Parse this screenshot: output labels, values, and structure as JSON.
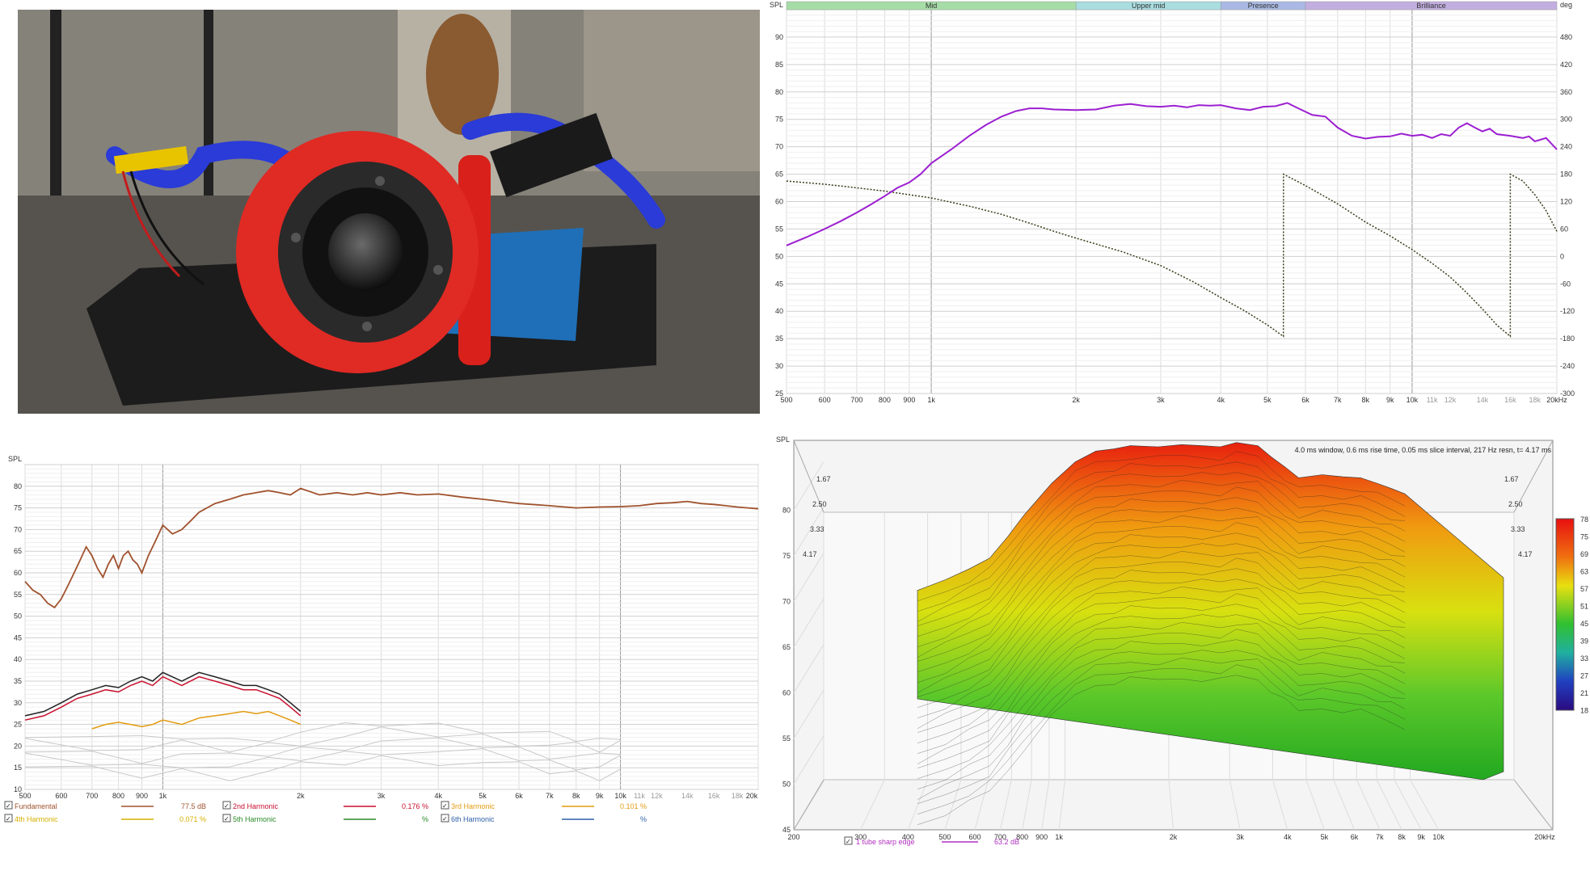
{
  "photo": {
    "subject": "red-tweeter-on-stand-photo"
  },
  "chart_data": [
    {
      "id": "frequency-response",
      "type": "line",
      "ylabel": "SPL",
      "y2label": "deg",
      "xscale": "log",
      "xlim": [
        500,
        20000
      ],
      "ylim": [
        25,
        95
      ],
      "y2lim": [
        -300,
        540
      ],
      "x_ticks": [
        500,
        600,
        700,
        800,
        900,
        1000,
        2000,
        3000,
        4000,
        5000,
        6000,
        7000,
        8000,
        9000,
        10000,
        11000,
        12000,
        14000,
        16000,
        18000,
        20000
      ],
      "x_tick_labels": [
        "500",
        "600",
        "700",
        "800",
        "900",
        "1k",
        "2k",
        "3k",
        "4k",
        "5k",
        "6k",
        "7k",
        "8k",
        "9k",
        "10k",
        "11k",
        "12k",
        "14k",
        "16k",
        "18k",
        "20kHz"
      ],
      "y_ticks": [
        25,
        30,
        35,
        40,
        45,
        50,
        55,
        60,
        65,
        70,
        75,
        80,
        85,
        90
      ],
      "y2_ticks": [
        -300,
        -240,
        -180,
        -120,
        -60,
        0,
        60,
        120,
        180,
        240,
        300,
        360,
        420,
        480
      ],
      "bands": [
        {
          "label": "Mid",
          "from": 500,
          "to": 2000,
          "color": "#a6dca6"
        },
        {
          "label": "Upper mid",
          "from": 2000,
          "to": 4000,
          "color": "#a9dde0"
        },
        {
          "label": "Presence",
          "from": 4000,
          "to": 6000,
          "color": "#a9b9e3"
        },
        {
          "label": "Brilliance",
          "from": 6000,
          "to": 20000,
          "color": "#c2aee0"
        }
      ],
      "series": [
        {
          "role": "spl",
          "color": "#9c1fd1",
          "x": [
            500,
            550,
            600,
            650,
            700,
            750,
            800,
            850,
            900,
            950,
            1000,
            1100,
            1200,
            1300,
            1400,
            1500,
            1600,
            1700,
            1800,
            2000,
            2200,
            2400,
            2600,
            2800,
            3000,
            3200,
            3400,
            3600,
            3800,
            4000,
            4300,
            4600,
            4900,
            5200,
            5500,
            5800,
            6200,
            6600,
            7000,
            7500,
            8000,
            8500,
            9000,
            9500,
            10000,
            10500,
            11000,
            11500,
            12000,
            12500,
            13000,
            13500,
            14000,
            14500,
            15000,
            16000,
            17000,
            17500,
            18000,
            19000,
            20000
          ],
          "y": [
            52,
            53.5,
            55,
            56.5,
            58,
            59.5,
            61,
            62.5,
            63.5,
            65,
            67,
            69.5,
            72,
            74,
            75.5,
            76.5,
            77,
            77,
            76.8,
            76.7,
            76.8,
            77.5,
            77.8,
            77.4,
            77.3,
            77.5,
            77.2,
            77.6,
            77.5,
            77.6,
            77,
            76.7,
            77.3,
            77.4,
            78,
            77,
            75.8,
            75.5,
            73.5,
            72,
            71.5,
            71.8,
            71.9,
            72.4,
            72,
            72.2,
            71.6,
            72.3,
            72,
            73.5,
            74.3,
            73.5,
            72.8,
            73.3,
            72.3,
            72,
            71.6,
            71.9,
            71,
            71.6,
            69.5
          ]
        },
        {
          "role": "phase",
          "color": "#3b3b1a",
          "x": [
            500,
            600,
            700,
            800,
            900,
            1000,
            1200,
            1400,
            1600,
            1800,
            2000,
            2500,
            3000,
            3500,
            4000,
            4500,
            5000,
            5400,
            5401,
            6000,
            7000,
            8000,
            9000,
            10000,
            11000,
            12000,
            13000,
            14000,
            15000,
            16000,
            16001,
            17000,
            18000,
            19000,
            20000
          ],
          "y": [
            165,
            158,
            150,
            143,
            135,
            128,
            110,
            92,
            73,
            55,
            40,
            10,
            -20,
            -55,
            -90,
            -120,
            -150,
            -175,
            180,
            155,
            115,
            75,
            45,
            15,
            -15,
            -45,
            -80,
            -115,
            -150,
            -175,
            180,
            165,
            135,
            100,
            55
          ]
        }
      ]
    },
    {
      "id": "harmonic-distortion",
      "type": "line",
      "ylabel": "SPL",
      "xscale": "log",
      "xlim": [
        500,
        20000
      ],
      "ylim": [
        10,
        85
      ],
      "x_ticks": [
        500,
        600,
        700,
        800,
        900,
        1000,
        2000,
        3000,
        4000,
        5000,
        6000,
        7000,
        8000,
        9000,
        10000,
        11000,
        12000,
        14000,
        16000,
        18000,
        20000
      ],
      "x_tick_labels": [
        "500",
        "600",
        "700",
        "800",
        "900",
        "1k",
        "2k",
        "3k",
        "4k",
        "5k",
        "6k",
        "7k",
        "8k",
        "9k",
        "10k",
        "11k",
        "12k",
        "14k",
        "16k",
        "18k",
        "20k"
      ],
      "y_ticks": [
        10,
        15,
        20,
        25,
        30,
        35,
        40,
        45,
        50,
        55,
        60,
        65,
        70,
        75,
        80
      ],
      "legend": [
        {
          "label": "Fundamental",
          "value": "77.5 dB",
          "color": "#a0522d",
          "checked": true
        },
        {
          "label": "2nd Harmonic",
          "value": "0.176 %",
          "color": "#c8102e",
          "checked": true
        },
        {
          "label": "3rd Harmonic",
          "value": "0.101 %",
          "color": "#e39b0f",
          "checked": true
        },
        {
          "label": "4th Harmonic",
          "value": "0.071 %",
          "color": "#d4b000",
          "checked": true
        },
        {
          "label": "5th Harmonic",
          "value": "%",
          "color": "#2a8a2a",
          "checked": true
        },
        {
          "label": "6th Harmonic",
          "value": "%",
          "color": "#2e5fa8",
          "checked": true
        }
      ],
      "series": [
        {
          "role": "fundamental",
          "color": "#a0522d",
          "x": [
            500,
            520,
            540,
            560,
            580,
            600,
            620,
            640,
            660,
            680,
            700,
            720,
            740,
            760,
            780,
            800,
            820,
            840,
            860,
            880,
            900,
            930,
            960,
            1000,
            1050,
            1100,
            1150,
            1200,
            1300,
            1400,
            1500,
            1600,
            1700,
            1800,
            1900,
            2000,
            2200,
            2400,
            2600,
            2800,
            3000,
            3300,
            3600,
            4000,
            4500,
            5000,
            5500,
            6000,
            7000,
            8000,
            9000,
            10000,
            11000,
            12000,
            13000,
            14000,
            15000,
            16000,
            17000,
            18000,
            19000,
            20000
          ],
          "y": [
            58,
            56,
            55,
            53,
            52,
            54,
            57,
            60,
            63,
            66,
            64,
            61,
            59,
            62,
            64,
            61,
            64,
            65,
            63,
            62,
            60,
            64,
            67,
            71,
            69,
            70,
            72,
            74,
            76,
            77,
            78,
            78.5,
            79,
            78.5,
            78,
            79.5,
            78,
            78.5,
            78,
            78.5,
            78,
            78.5,
            78,
            78.2,
            77.5,
            77,
            76.5,
            76,
            75.5,
            75,
            75.2,
            75.3,
            75.5,
            76,
            76.2,
            76.5,
            76,
            75.8,
            75.5,
            75.2,
            75,
            74.8
          ]
        },
        {
          "role": "2nd-harmonic",
          "color": "#c8102e",
          "x": [
            500,
            550,
            600,
            650,
            700,
            750,
            800,
            850,
            900,
            950,
            1000,
            1100,
            1200,
            1300,
            1400,
            1500,
            1600,
            1700,
            1800,
            1900,
            2000
          ],
          "y": [
            26,
            27,
            29,
            31,
            32,
            33,
            32.5,
            34,
            35,
            34,
            36,
            34,
            36,
            35,
            34,
            33,
            33,
            32,
            31,
            29,
            27
          ]
        },
        {
          "role": "3rd-harmonic",
          "color": "#e39b0f",
          "x": [
            700,
            750,
            800,
            850,
            900,
            950,
            1000,
            1100,
            1200,
            1300,
            1400,
            1500,
            1600,
            1700,
            1800,
            1900,
            2000
          ],
          "y": [
            24,
            25,
            25.5,
            25,
            24.5,
            25,
            26,
            25,
            26.5,
            27,
            27.5,
            28,
            27.5,
            28,
            27,
            26,
            25
          ]
        },
        {
          "role": "higher-harmonics",
          "color": "#c8c8c8",
          "x": [
            500,
            700,
            900,
            1100,
            1400,
            1700,
            2000,
            2500,
            3000,
            4000,
            5000,
            6000,
            7000,
            8000,
            9000,
            10000
          ],
          "y": [
            22,
            21,
            20,
            21,
            20,
            21,
            22,
            23,
            24,
            23.5,
            23,
            22,
            21,
            20.5,
            20,
            21.5
          ]
        }
      ]
    },
    {
      "id": "cumulative-spectral-decay",
      "type": "area",
      "ylabel": "SPL",
      "annotation": "4.0 ms window, 0.6 ms rise time, 0.05 ms slice interval, 217 Hz resn, t= 4.17 ms",
      "xscale": "log",
      "xlim": [
        200,
        20000
      ],
      "ylim": [
        45,
        85
      ],
      "x_ticks": [
        200,
        300,
        400,
        500,
        600,
        700,
        800,
        900,
        1000,
        2000,
        3000,
        4000,
        5000,
        6000,
        7000,
        8000,
        9000,
        10000,
        20000
      ],
      "x_tick_labels": [
        "200",
        "300",
        "400",
        "500",
        "600",
        "700",
        "800",
        "900",
        "1k",
        "2k",
        "3k",
        "4k",
        "5k",
        "6k",
        "7k",
        "8k",
        "9k",
        "10k",
        "20kHz"
      ],
      "y_ticks": [
        45,
        50,
        55,
        60,
        65,
        70,
        75,
        80
      ],
      "time_ticks": [
        "1.67",
        "2.50",
        "3.33",
        "4.17"
      ],
      "colorbar": [
        78,
        75,
        69,
        63,
        57,
        51,
        45,
        39,
        33,
        27,
        21,
        18
      ],
      "legend": [
        {
          "label": "1 tube sharp edge",
          "value": "63.2 dB",
          "color": "#b030c0",
          "checked": true
        }
      ],
      "series": [
        {
          "role": "front-slice",
          "x": [
            500,
            600,
            700,
            800,
            900,
            1000,
            1200,
            1400,
            1600,
            1800,
            2000,
            2400,
            2800,
            3200,
            3600,
            4000,
            4600,
            5000,
            5500,
            6000,
            7000,
            8000,
            9000,
            10000,
            11000,
            12000
          ],
          "y": [
            66,
            67,
            68,
            69,
            71,
            73,
            76,
            78,
            79,
            79.2,
            79.5,
            79.4,
            79.6,
            79.5,
            79.4,
            79.8,
            79.5,
            78.5,
            77.5,
            76.5,
            76.8,
            76.6,
            76.5,
            76,
            75.5,
            75
          ]
        }
      ]
    }
  ]
}
